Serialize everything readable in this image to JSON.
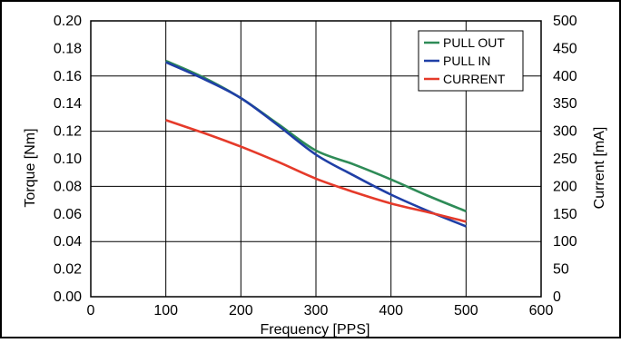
{
  "chart_data": {
    "type": "line",
    "title": "",
    "xlabel": "Frequency  [PPS]",
    "ylabel": "Torque [Nm]",
    "y2label": "Current [mA]",
    "xlim": [
      0,
      600
    ],
    "ylim": [
      0,
      0.2
    ],
    "y2lim": [
      0,
      500
    ],
    "x_ticks": [
      "0",
      "100",
      "200",
      "300",
      "400",
      "500",
      "600"
    ],
    "y_ticks": [
      "0.00",
      "0.02",
      "0.04",
      "0.06",
      "0.08",
      "0.10",
      "0.12",
      "0.14",
      "0.16",
      "0.18",
      "0.20"
    ],
    "y2_ticks": [
      "0",
      "50",
      "100",
      "150",
      "200",
      "250",
      "300",
      "350",
      "400",
      "450",
      "500"
    ],
    "grid": true,
    "legend_position": "top-right",
    "series": [
      {
        "name": "PULL OUT",
        "axis": "left",
        "color": "#2e8b57",
        "x": [
          100,
          150,
          200,
          250,
          300,
          350,
          400,
          450,
          500
        ],
        "y": [
          0.171,
          0.159,
          0.144,
          0.125,
          0.106,
          0.096,
          0.085,
          0.073,
          0.062
        ]
      },
      {
        "name": "PULL IN",
        "axis": "left",
        "color": "#1f3fa6",
        "x": [
          100,
          150,
          200,
          250,
          300,
          350,
          400,
          450,
          500
        ],
        "y": [
          0.17,
          0.158,
          0.144,
          0.124,
          0.103,
          0.088,
          0.074,
          0.062,
          0.051
        ]
      },
      {
        "name": "CURRENT",
        "axis": "right",
        "color": "#e53a2a",
        "x": [
          100,
          150,
          200,
          250,
          300,
          350,
          400,
          450,
          500
        ],
        "y": [
          320,
          297,
          272,
          244,
          214,
          190,
          169,
          153,
          136
        ]
      }
    ]
  }
}
